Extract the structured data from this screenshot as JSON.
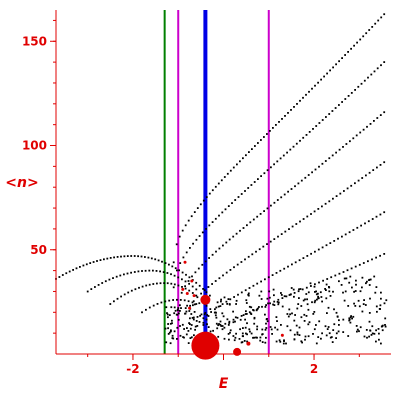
{
  "chart_data": {
    "type": "scatter",
    "xlabel": "E",
    "ylabel": "<n>",
    "xlim": [
      -3.7,
      3.7
    ],
    "ylim": [
      0,
      165
    ],
    "x_ticks": [
      -2,
      0,
      2
    ],
    "y_ticks": [
      50,
      100,
      150
    ],
    "x_tick_labels": [
      "-2",
      "",
      "2"
    ],
    "y_tick_labels": [
      "50",
      "100",
      "150"
    ],
    "axis_color": "#e00000",
    "point_color": "#000000",
    "grid": false,
    "vertical_lines": [
      {
        "x": -1.3,
        "color": "#008000",
        "width": 2
      },
      {
        "x": -1.0,
        "color": "#cc00cc",
        "width": 2
      },
      {
        "x": -0.4,
        "color": "#0000e6",
        "width": 4
      },
      {
        "x": 1.0,
        "color": "#cc00cc",
        "width": 2
      }
    ],
    "highlight_points": [
      {
        "x": -0.4,
        "y": 4,
        "r": 14
      },
      {
        "x": -0.4,
        "y": 26,
        "r": 5
      },
      {
        "x": 0.3,
        "y": 1,
        "r": 4
      },
      {
        "x": 0.55,
        "y": 5,
        "r": 2
      },
      {
        "x": -0.65,
        "y": 28,
        "r": 1.5
      },
      {
        "x": -0.8,
        "y": 29,
        "r": 1.5
      },
      {
        "x": -0.9,
        "y": 31,
        "r": 1.5
      },
      {
        "x": -0.7,
        "y": 35,
        "r": 1.5
      },
      {
        "x": -0.85,
        "y": 44,
        "r": 1.5
      },
      {
        "x": -0.75,
        "y": 22,
        "r": 1.5
      },
      {
        "x": 1.3,
        "y": 9,
        "r": 1.5
      },
      {
        "x": -0.2,
        "y": 3,
        "r": 1.5
      }
    ],
    "bands": [
      {
        "name": "b1",
        "x_start": -3.7,
        "x_end": 3.7,
        "curve": "arc",
        "peak_x": -2.0,
        "peak_y": 47,
        "y_start": 36,
        "y_end_at_peak_plus": 0,
        "params": {
          "y_left": 36,
          "y_peak": 47,
          "x_peak": -2.0,
          "x_right": -0.3,
          "y_right": 28,
          "n": 45
        }
      },
      {
        "name": "b2",
        "params": {
          "y_left": 30,
          "y_peak": 40,
          "x_peak": -1.6,
          "x_left": -3.0,
          "x_right": -0.6,
          "y_right": 31,
          "n": 30
        }
      },
      {
        "name": "b3",
        "params": {
          "y_left": 24,
          "y_peak": 34,
          "x_peak": -1.3,
          "x_left": -2.5,
          "x_right": -0.6,
          "y_right": 28,
          "n": 24
        }
      },
      {
        "name": "b4",
        "params": {
          "y_left": 20,
          "y_peak": 26,
          "x_peak": -1.0,
          "x_left": -1.8,
          "x_right": -0.6,
          "y_right": 24,
          "n": 14
        }
      }
    ],
    "rising_series": [
      {
        "x_start": -1.1,
        "y_start": 44,
        "x_end": 3.55,
        "y_end": 163,
        "n": 70
      },
      {
        "x_start": -1.1,
        "y_start": 32,
        "x_end": 3.55,
        "y_end": 140,
        "n": 65
      },
      {
        "x_start": -1.0,
        "y_start": 22,
        "x_end": 3.55,
        "y_end": 116,
        "n": 60
      },
      {
        "x_start": -0.9,
        "y_start": 14,
        "x_end": 3.55,
        "y_end": 92,
        "n": 55
      },
      {
        "x_start": -0.7,
        "y_start": 8,
        "x_end": 3.55,
        "y_end": 68,
        "n": 50
      },
      {
        "x_start": -0.5,
        "y_start": 4,
        "x_end": 3.55,
        "y_end": 48,
        "n": 45
      }
    ],
    "scatter_cloud": {
      "x_min": -1.3,
      "x_max": 3.6,
      "y_min": 5,
      "y_max": 40,
      "count": 420,
      "seed": 7
    }
  }
}
